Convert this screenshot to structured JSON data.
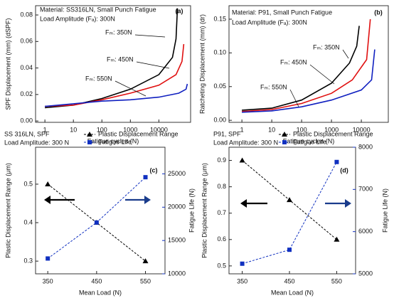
{
  "chart_data": [
    {
      "type": "line",
      "xscale": "log",
      "panel_label": "(a)",
      "title": "Material: SS316LN, Small Punch Fatigue",
      "subtitle": "Load Amplitude (Fₐ): 300N",
      "xlabel": "Fatigue cycles (N)",
      "ylabel": "SPF Displacement (mm) (dSPF)",
      "xlim": [
        0.47,
        130000
      ],
      "xticks": [
        1,
        10,
        100,
        1000,
        10000
      ],
      "ylim": [
        -0.001,
        0.087
      ],
      "yticks": [
        {
          "value": 0,
          "label": "0.00"
        },
        0.02,
        0.04,
        0.06,
        0.08
      ],
      "annotations": [
        "Fₘ: 350N",
        "Fₘ: 450N",
        "Fₘ: 550N"
      ],
      "series": [
        {
          "name": "Fₘ: 350N",
          "color": "#000000",
          "x": [
            1,
            10,
            100,
            1000,
            10000,
            30000,
            40000,
            45000
          ],
          "values": [
            0.01,
            0.012,
            0.017,
            0.024,
            0.035,
            0.048,
            0.062,
            0.085
          ]
        },
        {
          "name": "Fₘ: 450N",
          "color": "#e01010",
          "x": [
            1,
            10,
            100,
            1000,
            10000,
            40000,
            65000,
            75000
          ],
          "values": [
            0.011,
            0.012,
            0.016,
            0.021,
            0.027,
            0.035,
            0.045,
            0.058
          ]
        },
        {
          "name": "Fₘ: 550N",
          "color": "#1020c0",
          "x": [
            1,
            10,
            100,
            1000,
            10000,
            50000,
            90000,
            100000
          ],
          "values": [
            0.011,
            0.013,
            0.015,
            0.016,
            0.018,
            0.021,
            0.024,
            0.028
          ]
        }
      ]
    },
    {
      "type": "line",
      "xscale": "log",
      "panel_label": "(b)",
      "title": "Material: P91, Small Punch Fatigue",
      "subtitle": "Load Amplitude (Fₐ): 300N",
      "xlabel": "Fatigue cycles (N)",
      "ylabel": "Ratcheting Displacement (mm) (dr)",
      "xlim": [
        0.37,
        80000
      ],
      "xticks": [
        1,
        10,
        100,
        1000,
        10000
      ],
      "ylim": [
        -0.003,
        0.17
      ],
      "yticks": [
        {
          "value": 0,
          "label": "0.00"
        },
        0.05,
        {
          "value": 0.1,
          "label": "0.10"
        },
        0.15
      ],
      "annotations": [
        "Fₘ: 350N",
        "Fₘ: 450N",
        "Fₘ: 550N"
      ],
      "series": [
        {
          "name": "Fₘ: 350N",
          "color": "#000000",
          "x": [
            1,
            10,
            100,
            1000,
            4000,
            7000,
            8500
          ],
          "values": [
            0.015,
            0.018,
            0.03,
            0.055,
            0.085,
            0.11,
            0.14
          ]
        },
        {
          "name": "Fₘ: 450N",
          "color": "#e01010",
          "x": [
            1,
            10,
            100,
            1000,
            5000,
            15000,
            20000
          ],
          "values": [
            0.013,
            0.016,
            0.025,
            0.04,
            0.06,
            0.09,
            0.15
          ]
        },
        {
          "name": "Fₘ: 550N",
          "color": "#1020c0",
          "x": [
            1,
            10,
            100,
            1000,
            10000,
            22000,
            28000
          ],
          "values": [
            0.012,
            0.014,
            0.02,
            0.03,
            0.045,
            0.06,
            0.105
          ]
        }
      ]
    },
    {
      "type": "dual",
      "panel_label": "(c)",
      "title": "SS 316LN, SPF",
      "subtitle": "Load Amplitude: 300 N",
      "xlabel": "Mean Load (N)",
      "ylabel": "Plastic Displacement Range (μm)",
      "y2label": "Fatigue Life (N)",
      "xlim": [
        325,
        590
      ],
      "xticks": [
        350,
        450,
        550
      ],
      "ylim": [
        0.267,
        0.596
      ],
      "yticks": [
        0.3,
        0.4,
        0.5
      ],
      "y2lim": [
        10000,
        29000
      ],
      "y2ticks": [
        10000,
        15000,
        20000,
        25000
      ],
      "series": [
        {
          "name": "Plastic Displacement Range",
          "color": "#000000",
          "marker": "triangle",
          "x": [
            350,
            450,
            550
          ],
          "values": [
            0.5,
            0.4,
            0.3
          ]
        },
        {
          "name": "Fatigue Life",
          "color": "#1030c0",
          "marker": "square",
          "axis": "y2",
          "x": [
            350,
            450,
            550
          ],
          "values": [
            12300,
            17700,
            24500
          ]
        }
      ]
    },
    {
      "type": "dual",
      "panel_label": "(d)",
      "title": "P91, SPF",
      "subtitle": "Load Amplitude: 300 N",
      "xlabel": "Mean Load (N)",
      "ylabel": "Plastic Displacement Range (μm)",
      "y2label": "Fatigue Life (N)",
      "xlim": [
        322,
        590
      ],
      "xticks": [
        350,
        450,
        550
      ],
      "ylim": [
        0.47,
        0.95
      ],
      "yticks": [
        0.5,
        0.6,
        0.7,
        0.8,
        0.9
      ],
      "y2lim": [
        5000,
        8000
      ],
      "y2ticks": [
        5000,
        6000,
        7000,
        8000
      ],
      "series": [
        {
          "name": "Plastic Displacement Range",
          "color": "#000000",
          "marker": "triangle",
          "x": [
            350,
            450,
            550
          ],
          "values": [
            0.9,
            0.75,
            0.6
          ]
        },
        {
          "name": "Fatigue Life",
          "color": "#1030c0",
          "marker": "square",
          "axis": "y2",
          "x": [
            350,
            450,
            550
          ],
          "values": [
            5240,
            5570,
            7650
          ]
        }
      ]
    }
  ]
}
